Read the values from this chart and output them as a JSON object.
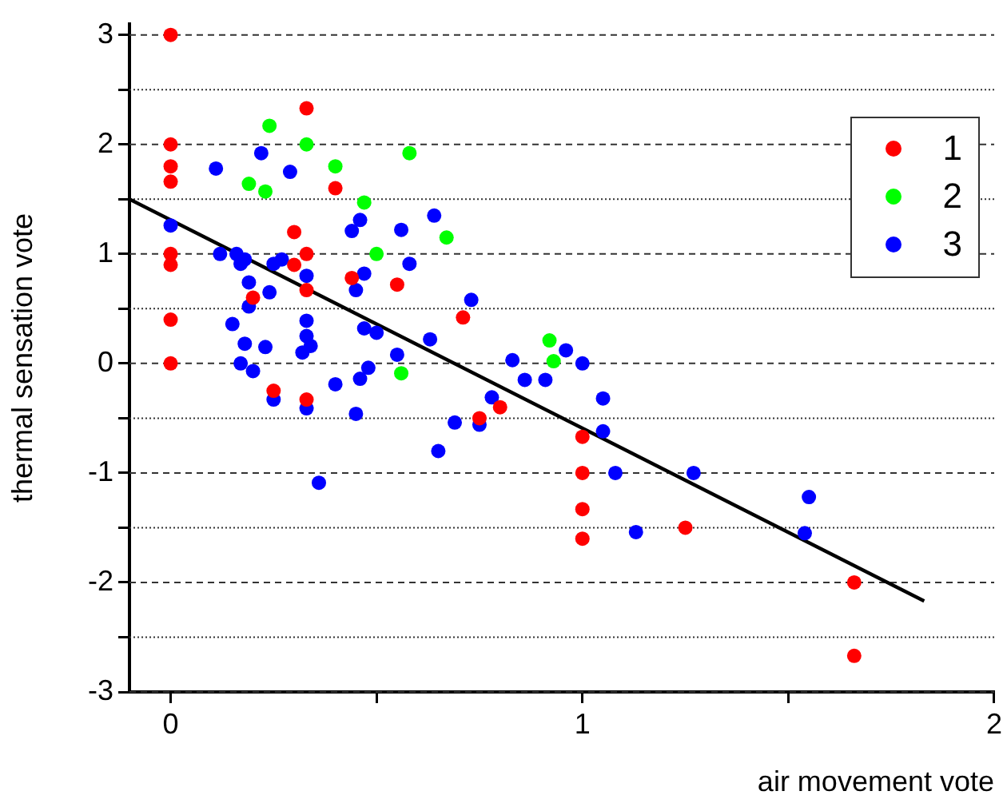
{
  "chart_data": {
    "type": "scatter",
    "xlabel": "air movement vote",
    "ylabel": "thermal sensation vote",
    "xlim": [
      -0.1,
      2
    ],
    "ylim": [
      -3,
      3.1
    ],
    "xticks": [
      0,
      {
        "value": 0.5,
        "label": null
      },
      1,
      {
        "value": 1.5,
        "label": null
      },
      2
    ],
    "yticks": [
      -3,
      {
        "value": -2.5,
        "label": null
      },
      -2,
      {
        "value": -1.5,
        "label": null
      },
      -1,
      {
        "value": -0.5,
        "label": null
      },
      0,
      {
        "value": 0.5,
        "label": null
      },
      1,
      {
        "value": 1.5,
        "label": null
      },
      2,
      {
        "value": 2.5,
        "label": null
      },
      3
    ],
    "grid": "y",
    "legend": "top right",
    "marker": "circle",
    "series": [
      {
        "name": "1",
        "color": "#ff0000",
        "x": [
          0,
          0.33,
          0,
          0,
          0,
          0.4,
          0.3,
          0,
          0.33,
          0,
          0.3,
          0.44,
          0.33,
          0.55,
          0.2,
          0,
          0,
          0.25,
          0.33,
          0.71,
          0.75,
          0.8,
          1,
          1,
          1,
          1,
          1.25,
          1.66,
          1.66
        ],
        "values": [
          3,
          2.33,
          2,
          1.8,
          1.66,
          1.6,
          1.2,
          1,
          1,
          0.9,
          0.9,
          0.78,
          0.67,
          0.72,
          0.6,
          0.4,
          0,
          -0.25,
          -0.33,
          0.42,
          -0.5,
          -0.4,
          -0.67,
          -1,
          -1.33,
          -1.6,
          -1.5,
          -2,
          -2.67
        ]
      },
      {
        "name": "2",
        "color": "#00ff00",
        "x": [
          0.24,
          0.33,
          0.19,
          0.23,
          0.4,
          0.58,
          0.47,
          0.5,
          0.67,
          0.56,
          0.92,
          0.93
        ],
        "values": [
          2.17,
          2,
          1.64,
          1.57,
          1.8,
          1.92,
          1.47,
          1,
          1.15,
          -0.09,
          0.21,
          0.02
        ]
      },
      {
        "name": "3",
        "color": "#0000ff",
        "x": [
          0.11,
          0.22,
          0.29,
          0,
          0.12,
          0.16,
          0.17,
          0.18,
          0.19,
          0.19,
          0.24,
          0.25,
          0.27,
          0.15,
          0.18,
          0.23,
          0.17,
          0.2,
          0.33,
          0.33,
          0.33,
          0.34,
          0.32,
          0.44,
          0.46,
          0.45,
          0.47,
          0.56,
          0.58,
          0.64,
          0.47,
          0.5,
          0.63,
          0.55,
          0.48,
          0.46,
          0.4,
          0.25,
          0.33,
          0.45,
          0.36,
          0.65,
          0.69,
          0.75,
          0.78,
          0.73,
          0.83,
          0.96,
          1,
          0.86,
          0.91,
          1.05,
          1.05,
          1.08,
          1.27,
          1.13,
          1.55,
          1.54
        ],
        "values": [
          1.78,
          1.92,
          1.75,
          1.26,
          1,
          1,
          0.91,
          0.95,
          0.74,
          0.52,
          0.65,
          0.91,
          0.95,
          0.36,
          0.18,
          0.15,
          0,
          -0.07,
          0.8,
          0.39,
          0.25,
          0.16,
          0.1,
          1.21,
          1.31,
          0.67,
          0.82,
          1.22,
          0.91,
          1.35,
          0.32,
          0.28,
          0.22,
          0.08,
          -0.04,
          -0.14,
          -0.19,
          -0.33,
          -0.41,
          -0.46,
          -1.09,
          -0.8,
          -0.54,
          -0.56,
          -0.31,
          0.58,
          0.03,
          0.12,
          0,
          -0.15,
          -0.15,
          -0.32,
          -0.62,
          -1,
          -1,
          -1.54,
          -1.22,
          -1.55
        ]
      },
      {
        "type": "line",
        "marker": "none",
        "color": "#000000",
        "x": [
          -0.1,
          1.83
        ],
        "values": [
          1.5,
          -2.17
        ]
      }
    ]
  }
}
